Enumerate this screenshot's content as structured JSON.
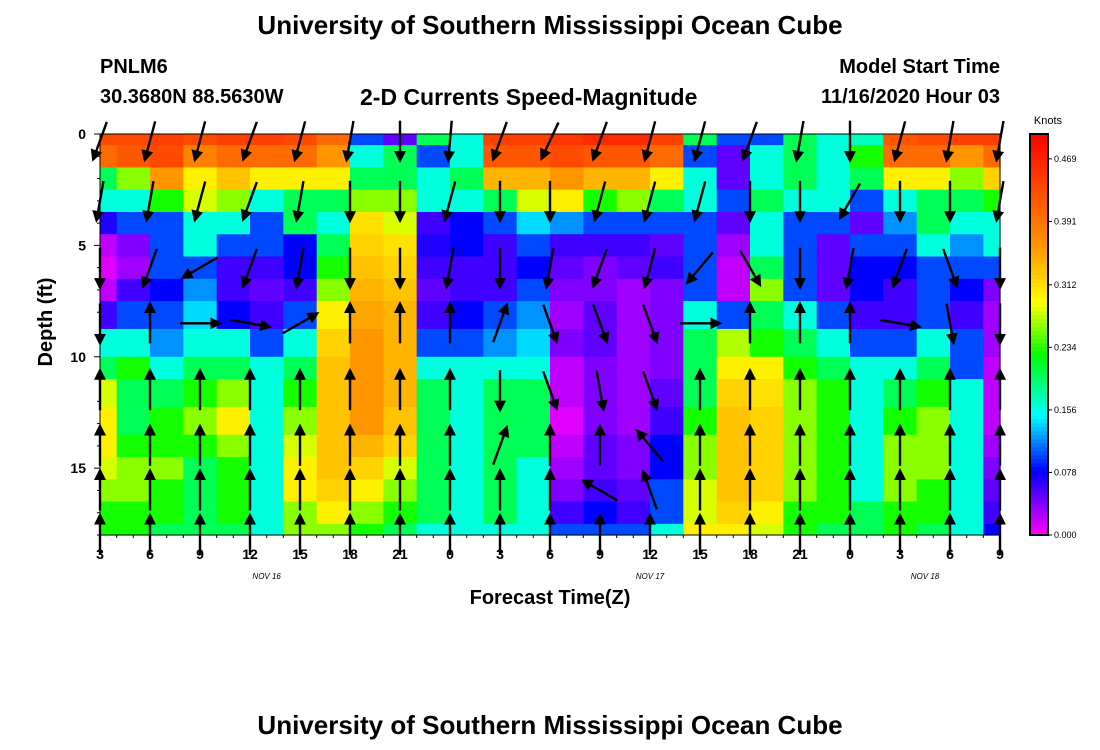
{
  "header": {
    "title": "University of Southern Mississippi Ocean Cube",
    "station_id": "PNLM6",
    "coords": "30.3680N 88.5630W",
    "chart_title": "2-D Currents Speed-Magnitude",
    "start_label": "Model Start Time",
    "start_value": "11/16/2020 Hour 03"
  },
  "footer": {
    "title": "University of Southern Mississippi Ocean Cube"
  },
  "chart_data": {
    "type": "heatmap",
    "title": "2-D Currents Speed-Magnitude",
    "xlabel": "Forecast Time(Z)",
    "ylabel": "Depth (ft)",
    "x_range_hours": [
      0,
      54
    ],
    "y_range_ft": [
      0,
      18
    ],
    "x_tick_labels": [
      "3",
      "6",
      "9",
      "12",
      "15",
      "18",
      "21",
      "0",
      "3",
      "6",
      "9",
      "12",
      "15",
      "18",
      "21",
      "0",
      "3",
      "6",
      "9"
    ],
    "y_ticks": [
      0,
      5,
      10,
      15
    ],
    "date_labels": [
      {
        "text": "NOV 16",
        "hour": 10
      },
      {
        "text": "NOV 17",
        "hour": 33
      },
      {
        "text": "NOV 18",
        "hour": 49.5
      }
    ],
    "colorbar": {
      "unit": "Knots",
      "min": 0,
      "max": 0.5,
      "ticks": [
        "0.000",
        "0.078",
        "0.156",
        "0.234",
        "0.312",
        "0.391",
        "0.469"
      ],
      "tick_values": [
        0,
        0.078,
        0.156,
        0.234,
        0.312,
        0.391,
        0.469
      ]
    },
    "depth_keys": [
      0,
      1,
      2,
      3,
      4,
      5,
      6,
      7,
      8,
      9.5,
      10.5,
      11.5,
      13,
      14,
      15,
      16,
      17,
      18
    ],
    "hour_keys": [
      0,
      2,
      4,
      6,
      8,
      10,
      12,
      14,
      16,
      18,
      20,
      22,
      24,
      26,
      28,
      30,
      32,
      34,
      36,
      38,
      40,
      42,
      44,
      46,
      48,
      50,
      52,
      54
    ],
    "speed_knots": [
      [
        0.43,
        0.43,
        0.44,
        0.43,
        0.44,
        0.44,
        0.43,
        0.4,
        0.1,
        0.05,
        0.2,
        0.16,
        0.44,
        0.44,
        0.45,
        0.46,
        0.46,
        0.44,
        0.2,
        0.1,
        0.1,
        0.2,
        0.16,
        0.17,
        0.42,
        0.43,
        0.44,
        0.44
      ],
      [
        0.4,
        0.42,
        0.43,
        0.38,
        0.4,
        0.4,
        0.4,
        0.36,
        0.16,
        0.2,
        0.1,
        0.16,
        0.42,
        0.42,
        0.43,
        0.42,
        0.42,
        0.4,
        0.1,
        0.05,
        0.16,
        0.2,
        0.16,
        0.23,
        0.4,
        0.4,
        0.36,
        0.4
      ],
      [
        0.2,
        0.26,
        0.36,
        0.3,
        0.33,
        0.3,
        0.3,
        0.3,
        0.2,
        0.2,
        0.16,
        0.2,
        0.34,
        0.34,
        0.36,
        0.34,
        0.34,
        0.3,
        0.16,
        0.05,
        0.16,
        0.2,
        0.16,
        0.2,
        0.3,
        0.3,
        0.26,
        0.32
      ],
      [
        0.16,
        0.16,
        0.23,
        0.28,
        0.26,
        0.16,
        0.2,
        0.2,
        0.26,
        0.26,
        0.16,
        0.16,
        0.2,
        0.28,
        0.3,
        0.23,
        0.26,
        0.2,
        0.16,
        0.1,
        0.2,
        0.16,
        0.16,
        0.1,
        0.16,
        0.2,
        0.2,
        0.23
      ],
      [
        0.07,
        0.1,
        0.1,
        0.16,
        0.16,
        0.1,
        0.2,
        0.16,
        0.31,
        0.28,
        0.06,
        0.08,
        0.1,
        0.14,
        0.12,
        0.1,
        0.1,
        0.1,
        0.1,
        0.05,
        0.16,
        0.1,
        0.1,
        0.05,
        0.12,
        0.2,
        0.16,
        0.16
      ],
      [
        0.02,
        0.04,
        0.1,
        0.16,
        0.1,
        0.1,
        0.08,
        0.2,
        0.32,
        0.31,
        0.07,
        0.08,
        0.06,
        0.1,
        0.06,
        0.06,
        0.06,
        0.05,
        0.1,
        0.03,
        0.16,
        0.1,
        0.05,
        0.1,
        0.1,
        0.16,
        0.12,
        0.16
      ],
      [
        0.01,
        0.03,
        0.1,
        0.1,
        0.06,
        0.06,
        0.08,
        0.23,
        0.33,
        0.32,
        0.06,
        0.06,
        0.06,
        0.08,
        0.05,
        0.04,
        0.05,
        0.06,
        0.1,
        0.02,
        0.2,
        0.1,
        0.05,
        0.08,
        0.08,
        0.1,
        0.1,
        0.1
      ],
      [
        0.02,
        0.06,
        0.08,
        0.12,
        0.06,
        0.05,
        0.06,
        0.26,
        0.34,
        0.33,
        0.05,
        0.06,
        0.06,
        0.1,
        0.04,
        0.04,
        0.03,
        0.04,
        0.1,
        0.02,
        0.26,
        0.1,
        0.05,
        0.08,
        0.06,
        0.1,
        0.08,
        0.04
      ],
      [
        0.06,
        0.1,
        0.1,
        0.14,
        0.08,
        0.06,
        0.1,
        0.3,
        0.35,
        0.34,
        0.06,
        0.08,
        0.1,
        0.12,
        0.03,
        0.05,
        0.03,
        0.04,
        0.16,
        0.1,
        0.2,
        0.16,
        0.1,
        0.06,
        0.06,
        0.1,
        0.06,
        0.03
      ],
      [
        0.16,
        0.16,
        0.12,
        0.16,
        0.16,
        0.1,
        0.16,
        0.32,
        0.36,
        0.34,
        0.1,
        0.1,
        0.12,
        0.14,
        0.04,
        0.05,
        0.03,
        0.04,
        0.2,
        0.27,
        0.23,
        0.2,
        0.16,
        0.1,
        0.1,
        0.16,
        0.1,
        0.03
      ],
      [
        0.2,
        0.23,
        0.16,
        0.2,
        0.2,
        0.16,
        0.2,
        0.33,
        0.36,
        0.34,
        0.16,
        0.16,
        0.16,
        0.16,
        0.02,
        0.04,
        0.03,
        0.04,
        0.2,
        0.3,
        0.3,
        0.23,
        0.2,
        0.16,
        0.16,
        0.2,
        0.1,
        0.02
      ],
      [
        0.28,
        0.2,
        0.2,
        0.23,
        0.26,
        0.16,
        0.23,
        0.33,
        0.36,
        0.34,
        0.2,
        0.16,
        0.2,
        0.2,
        0.02,
        0.04,
        0.03,
        0.05,
        0.2,
        0.32,
        0.31,
        0.26,
        0.23,
        0.16,
        0.2,
        0.23,
        0.16,
        0.02
      ],
      [
        0.3,
        0.2,
        0.23,
        0.26,
        0.3,
        0.16,
        0.26,
        0.33,
        0.36,
        0.33,
        0.2,
        0.16,
        0.2,
        0.2,
        0.01,
        0.04,
        0.03,
        0.06,
        0.23,
        0.33,
        0.32,
        0.26,
        0.23,
        0.16,
        0.23,
        0.26,
        0.16,
        0.02
      ],
      [
        0.3,
        0.23,
        0.23,
        0.23,
        0.26,
        0.16,
        0.28,
        0.33,
        0.34,
        0.32,
        0.2,
        0.16,
        0.2,
        0.2,
        0.02,
        0.05,
        0.04,
        0.08,
        0.26,
        0.33,
        0.32,
        0.26,
        0.23,
        0.16,
        0.26,
        0.26,
        0.16,
        0.03
      ],
      [
        0.28,
        0.26,
        0.26,
        0.2,
        0.23,
        0.16,
        0.3,
        0.33,
        0.32,
        0.28,
        0.2,
        0.16,
        0.2,
        0.16,
        0.03,
        0.05,
        0.04,
        0.08,
        0.26,
        0.33,
        0.32,
        0.26,
        0.23,
        0.16,
        0.26,
        0.26,
        0.16,
        0.04
      ],
      [
        0.26,
        0.26,
        0.23,
        0.2,
        0.23,
        0.16,
        0.3,
        0.32,
        0.3,
        0.26,
        0.2,
        0.16,
        0.2,
        0.16,
        0.04,
        0.06,
        0.05,
        0.1,
        0.28,
        0.33,
        0.32,
        0.26,
        0.23,
        0.16,
        0.26,
        0.23,
        0.16,
        0.05
      ],
      [
        0.23,
        0.23,
        0.23,
        0.2,
        0.23,
        0.16,
        0.26,
        0.3,
        0.26,
        0.23,
        0.2,
        0.16,
        0.2,
        0.16,
        0.06,
        0.08,
        0.06,
        0.1,
        0.28,
        0.32,
        0.3,
        0.23,
        0.23,
        0.2,
        0.23,
        0.23,
        0.16,
        0.06
      ],
      [
        0.23,
        0.23,
        0.2,
        0.2,
        0.2,
        0.16,
        0.26,
        0.26,
        0.23,
        0.2,
        0.16,
        0.16,
        0.16,
        0.16,
        0.1,
        0.1,
        0.1,
        0.16,
        0.3,
        0.3,
        0.28,
        0.23,
        0.2,
        0.2,
        0.23,
        0.2,
        0.16,
        0.08
      ]
    ],
    "vector_hours": [
      0,
      3,
      6,
      9,
      12,
      15,
      18,
      21,
      24,
      27,
      30,
      33,
      36,
      39,
      42,
      45,
      48,
      51,
      54
    ],
    "vector_depths": [
      0.3,
      3,
      6,
      8.5,
      11.5,
      14,
      16,
      18
    ],
    "vector_dirs_deg": [
      [
        200,
        195,
        195,
        200,
        195,
        190,
        180,
        185,
        200,
        205,
        200,
        195,
        195,
        200,
        190,
        180,
        195,
        190,
        190
      ],
      [
        190,
        190,
        195,
        200,
        190,
        180,
        180,
        195,
        180,
        180,
        195,
        195,
        195,
        180,
        180,
        210,
        180,
        180,
        190
      ],
      [
        180,
        200,
        240,
        200,
        190,
        180,
        180,
        190,
        180,
        190,
        200,
        195,
        220,
        150,
        180,
        190,
        200,
        160,
        180
      ],
      [
        180,
        0,
        90,
        100,
        60,
        0,
        0,
        0,
        20,
        160,
        160,
        160,
        90,
        0,
        0,
        0,
        100,
        170,
        180
      ],
      [
        0,
        0,
        0,
        0,
        0,
        0,
        0,
        0,
        180,
        160,
        170,
        160,
        0,
        0,
        0,
        0,
        0,
        0,
        0
      ],
      [
        0,
        0,
        0,
        0,
        0,
        0,
        0,
        0,
        20,
        0,
        0,
        320,
        0,
        0,
        0,
        0,
        0,
        0,
        0
      ],
      [
        0,
        0,
        0,
        0,
        0,
        0,
        0,
        0,
        0,
        0,
        300,
        340,
        0,
        0,
        0,
        0,
        0,
        0,
        0
      ],
      [
        0,
        0,
        0,
        0,
        0,
        0,
        0,
        0,
        0,
        0,
        0,
        0,
        0,
        0,
        0,
        0,
        0,
        0,
        0
      ]
    ]
  }
}
